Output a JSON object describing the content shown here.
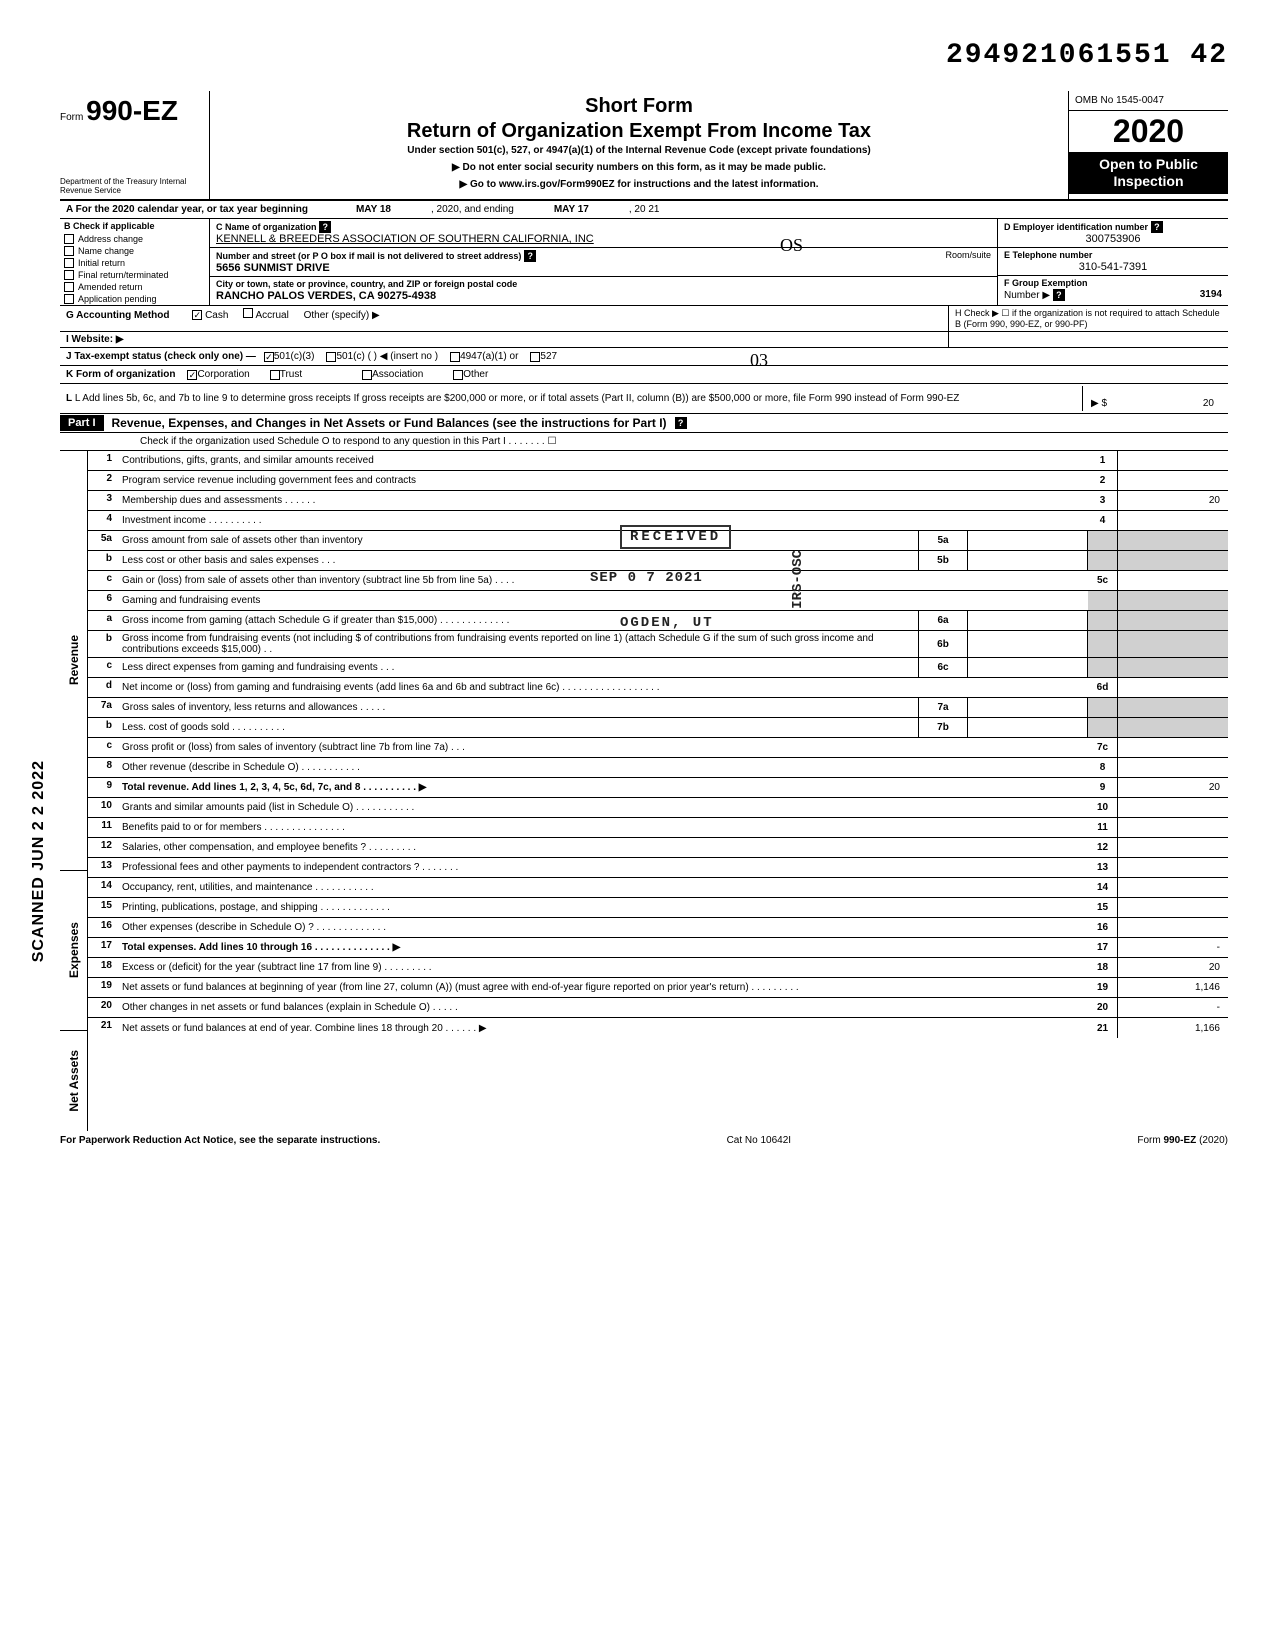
{
  "doc_number": "294921061551 42",
  "form": {
    "prefix": "Form",
    "number": "990-EZ",
    "short_form": "Short Form",
    "title": "Return of Organization Exempt From Income Tax",
    "subtitle": "Under section 501(c), 527, or 4947(a)(1) of the Internal Revenue Code (except private foundations)",
    "warn": "▶ Do not enter social security numbers on this form, as it may be made public.",
    "goto": "▶ Go to www.irs.gov/Form990EZ for instructions and the latest information.",
    "omb": "OMB No 1545-0047",
    "year_prefix": "2",
    "year_bold": "0",
    "year_suffix": "20",
    "open_public": "Open to Public Inspection",
    "dept": "Department of the Treasury Internal Revenue Service"
  },
  "A": {
    "label": "A For the 2020 calendar year, or tax year beginning",
    "begin": "MAY 18",
    "mid": ", 2020, and ending",
    "end": "MAY 17",
    "endyear": ", 20 21"
  },
  "B": {
    "head": "B Check if applicable",
    "opts": [
      "Address change",
      "Name change",
      "Initial return",
      "Final return/terminated",
      "Amended return",
      "Application pending"
    ]
  },
  "C": {
    "name_label": "C Name of organization",
    "name": "KENNELL & BREEDERS ASSOCIATION OF SOUTHERN CALIFORNIA, INC",
    "addr_label": "Number and street (or P O  box if mail is not delivered to street address)",
    "room_label": "Room/suite",
    "addr": "5656 SUNMIST DRIVE",
    "city_label": "City or town, state or province, country, and ZIP or foreign postal code",
    "city": "RANCHO PALOS VERDES, CA 90275-4938"
  },
  "D": {
    "label": "D Employer identification number",
    "val": "300753906"
  },
  "E": {
    "label": "E Telephone number",
    "val": "310-541-7391"
  },
  "F": {
    "label": "F Group Exemption",
    "num_label": "Number ▶",
    "val": "3194"
  },
  "G": {
    "label": "G  Accounting Method",
    "cash": "Cash",
    "accrual": "Accrual",
    "other": "Other (specify) ▶"
  },
  "H": {
    "label": "H Check ▶ ☐ if the organization is not required to attach Schedule B (Form 990, 990-EZ, or 990-PF)"
  },
  "I": {
    "label": "I  Website: ▶"
  },
  "J": {
    "label": "J  Tax-exempt status (check only one) —",
    "o1": "501(c)(3)",
    "o2": "501(c) (        ) ◀ (insert no )",
    "o3": "4947(a)(1) or",
    "o4": "527"
  },
  "K": {
    "label": "K  Form of organization",
    "corp": "Corporation",
    "trust": "Trust",
    "assoc": "Association",
    "other": "Other"
  },
  "L": {
    "text": "L  Add lines 5b, 6c, and 7b to line 9 to determine gross receipts  If gross receipts are $200,000 or more, or if total assets (Part II, column (B)) are $500,000 or more, file Form 990 instead of Form 990-EZ",
    "arrow": "▶  $",
    "val": "20"
  },
  "part1": {
    "label": "Part I",
    "title": "Revenue, Expenses, and Changes in Net Assets or Fund Balances (see the instructions for Part I)",
    "check_line": "Check if the organization used Schedule O to respond to any question in this Part I   .    .    .    .    .    .    .    ☐"
  },
  "sections": {
    "revenue": "Revenue",
    "expenses": "Expenses",
    "netassets": "Net Assets"
  },
  "rows": {
    "1": {
      "n": "1",
      "t": "Contributions, gifts, grants, and similar amounts received",
      "rn": "1"
    },
    "2": {
      "n": "2",
      "t": "Program service revenue including government fees and contracts",
      "rn": "2"
    },
    "3": {
      "n": "3",
      "t": "Membership dues and assessments .   .   .    .    .   .",
      "rn": "3",
      "rv": "20"
    },
    "4": {
      "n": "4",
      "t": "Investment income     .    .    .    .    .    .    .    .    .    .",
      "rn": "4"
    },
    "5a": {
      "n": "5a",
      "t": "Gross amount from sale of assets other than inventory",
      "mb": "5a"
    },
    "5b": {
      "n": "b",
      "t": "Less  cost or other basis and sales expenses     .    .    .",
      "mb": "5b"
    },
    "5c": {
      "n": "c",
      "t": "Gain or (loss) from sale of assets other than inventory (subtract line 5b from line 5a)  .   .   .   .",
      "rn": "5c"
    },
    "6": {
      "n": "6",
      "t": "Gaming and fundraising events"
    },
    "6a": {
      "n": "a",
      "t": "Gross income from gaming (attach Schedule G if greater than $15,000) .   .  .     .    .    .    .    .    .    .    .    .    .",
      "mb": "6a"
    },
    "6b": {
      "n": "b",
      "t": "Gross income from fundraising events (not including  $                     of contributions from fundraising events reported on line 1) (attach Schedule G if the sum of such gross income and contributions exceeds $15,000) .   .",
      "mb": "6b"
    },
    "6c": {
      "n": "c",
      "t": "Less  direct expenses from gaming and fundraising events    .    .    .",
      "mb": "6c"
    },
    "6d": {
      "n": "d",
      "t": "Net income or (loss) from gaming and fundraising events (add lines 6a and 6b and subtract line 6c)        .    .    .    .    .    .    .    .    .    .    .    .    .    .    .    .    .    .",
      "rn": "6d"
    },
    "7a": {
      "n": "7a",
      "t": "Gross sales of inventory, less returns and allowances  .   .   .   .   .",
      "mb": "7a"
    },
    "7b": {
      "n": "b",
      "t": "Less. cost of goods sold     .      .    .    .    .    .    .    .    .   .",
      "mb": "7b"
    },
    "7c": {
      "n": "c",
      "t": "Gross profit or (loss) from sales of inventory (subtract line 7b from line 7a)   .            .   .",
      "rn": "7c"
    },
    "8": {
      "n": "8",
      "t": "Other revenue (describe in Schedule O) .   .    .    .    .    .              .    .   .              .   .",
      "rn": "8"
    },
    "9": {
      "n": "9",
      "t": "Total revenue. Add lines 1, 2, 3, 4, 5c, 6d, 7c, and 8    .    .    .          .   .   .   .      .   .   . ▶",
      "rn": "9",
      "rv": "20",
      "bold": true
    },
    "10": {
      "n": "10",
      "t": "Grants and similar amounts paid (list in Schedule O)   .    .    .    .    .    .    .    .   .   .   .",
      "rn": "10"
    },
    "11": {
      "n": "11",
      "t": "Benefits paid to or for members   .    .    .      .    .    .    .    .    .    .    .    .    .    .   .",
      "rn": "11"
    },
    "12": {
      "n": "12",
      "t": "Salaries, other compensation, and employee benefits ?    .    .    .    .           .   .   .   .    .",
      "rn": "12"
    },
    "13": {
      "n": "13",
      "t": "Professional fees and other payments to independent contractors ?  .   .    .    .   .   .   .",
      "rn": "13"
    },
    "14": {
      "n": "14",
      "t": "Occupancy, rent, utilities, and maintenance     .    .    .    .           .    .    .    .    .    .    .",
      "rn": "14"
    },
    "15": {
      "n": "15",
      "t": "Printing, publications, postage, and shipping  .   .   .   .   .   .   .   .   .   .         .   .    .",
      "rn": "15"
    },
    "16": {
      "n": "16",
      "t": "Other expenses (describe in Schedule O) ?   .   .    .    .    .    .    .    .    .    .    .    .    .",
      "rn": "16"
    },
    "17": {
      "n": "17",
      "t": "Total expenses. Add lines 10 through 16  .   .    .    .    .    .    .    .    .    .    .    .    .    . ▶",
      "rn": "17",
      "rv": "-",
      "bold": true
    },
    "18": {
      "n": "18",
      "t": "Excess or (deficit) for the year (subtract line 17 from line 9)     .    .    .     .    .    .    .    .    .",
      "rn": "18",
      "rv": "20"
    },
    "19": {
      "n": "19",
      "t": "Net assets or fund balances at beginning of year (from line 27, column (A)) (must agree with end-of-year figure reported on prior year's return)        .    .    .    .     .    .   .       .    .",
      "rn": "19",
      "rv": "1,146"
    },
    "20": {
      "n": "20",
      "t": "Other changes in net assets or fund balances (explain in Schedule O)      .   .   .       .    .",
      "rn": "20",
      "rv": "-"
    },
    "21": {
      "n": "21",
      "t": "Net assets or fund balances at end of year. Combine lines 18 through 20    .   .   .   .   .    . ▶",
      "rn": "21",
      "rv": "1,166"
    }
  },
  "footer": {
    "left": "For Paperwork Reduction Act Notice, see the separate instructions.",
    "mid": "Cat  No  10642I",
    "right": "Form 990-EZ (2020)"
  },
  "stamps": {
    "received": "RECEIVED",
    "date": "SEP 0 7 2021",
    "ogden": "OGDEN, UT",
    "irsosc": "IRS-OSC",
    "scanned": "SCANNED  JUN 2 2 2022"
  },
  "hand": {
    "os": "03",
    "init": "OS"
  }
}
